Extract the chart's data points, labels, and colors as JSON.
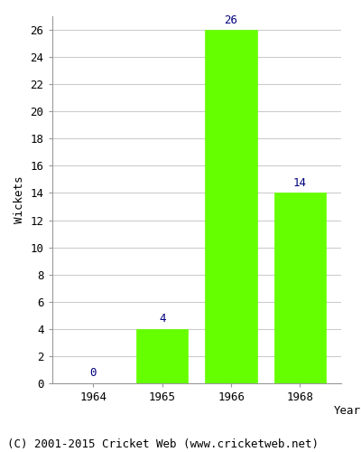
{
  "categories": [
    "1964",
    "1965",
    "1966",
    "1968"
  ],
  "values": [
    0,
    4,
    26,
    14
  ],
  "bar_color": "#66ff00",
  "bar_edge_color": "#66ff00",
  "label_color": "#000080",
  "xlabel": "Year",
  "ylabel": "Wickets",
  "ylim": [
    0,
    27
  ],
  "ytick_step": 2,
  "footer": "(C) 2001-2015 Cricket Web (www.cricketweb.net)",
  "background_color": "#ffffff",
  "plot_bg_color": "#ffffff",
  "label_fontsize": 9,
  "axis_fontsize": 9,
  "footer_fontsize": 9,
  "bar_width": 0.75
}
